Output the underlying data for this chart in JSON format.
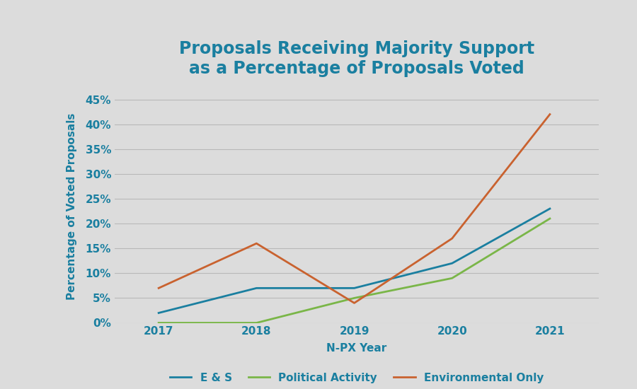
{
  "title_line1": "Proposals Receiving Majority Support",
  "title_line2": "as a Percentage of Proposals Voted",
  "xlabel": "N-PX Year",
  "ylabel": "Percentage of Voted Proposals",
  "x_values": [
    2017,
    2018,
    2019,
    2020,
    2021
  ],
  "es_values": [
    2,
    7,
    7,
    12,
    23
  ],
  "political_values": [
    0,
    0,
    5,
    9,
    21
  ],
  "environmental_values": [
    7,
    16,
    4,
    17,
    42
  ],
  "es_color": "#1a7fa0",
  "political_color": "#7ab648",
  "environmental_color": "#c9622f",
  "background_color": "#dcdcdc",
  "plot_bg_color": "#dcdcdc",
  "title_color": "#1a7fa0",
  "axis_color": "#1a7fa0",
  "tick_color": "#1a7fa0",
  "grid_color": "#b8b8b8",
  "ylim": [
    0,
    47
  ],
  "yticks": [
    0,
    5,
    10,
    15,
    20,
    25,
    30,
    35,
    40,
    45
  ],
  "legend_es": "E & S",
  "legend_political": "Political Activity",
  "legend_environmental": "Environmental Only",
  "line_width": 2.0,
  "title_fontsize": 17,
  "axis_label_fontsize": 11,
  "tick_fontsize": 11,
  "legend_fontsize": 11,
  "bottom_black_bar_height": 0.07
}
